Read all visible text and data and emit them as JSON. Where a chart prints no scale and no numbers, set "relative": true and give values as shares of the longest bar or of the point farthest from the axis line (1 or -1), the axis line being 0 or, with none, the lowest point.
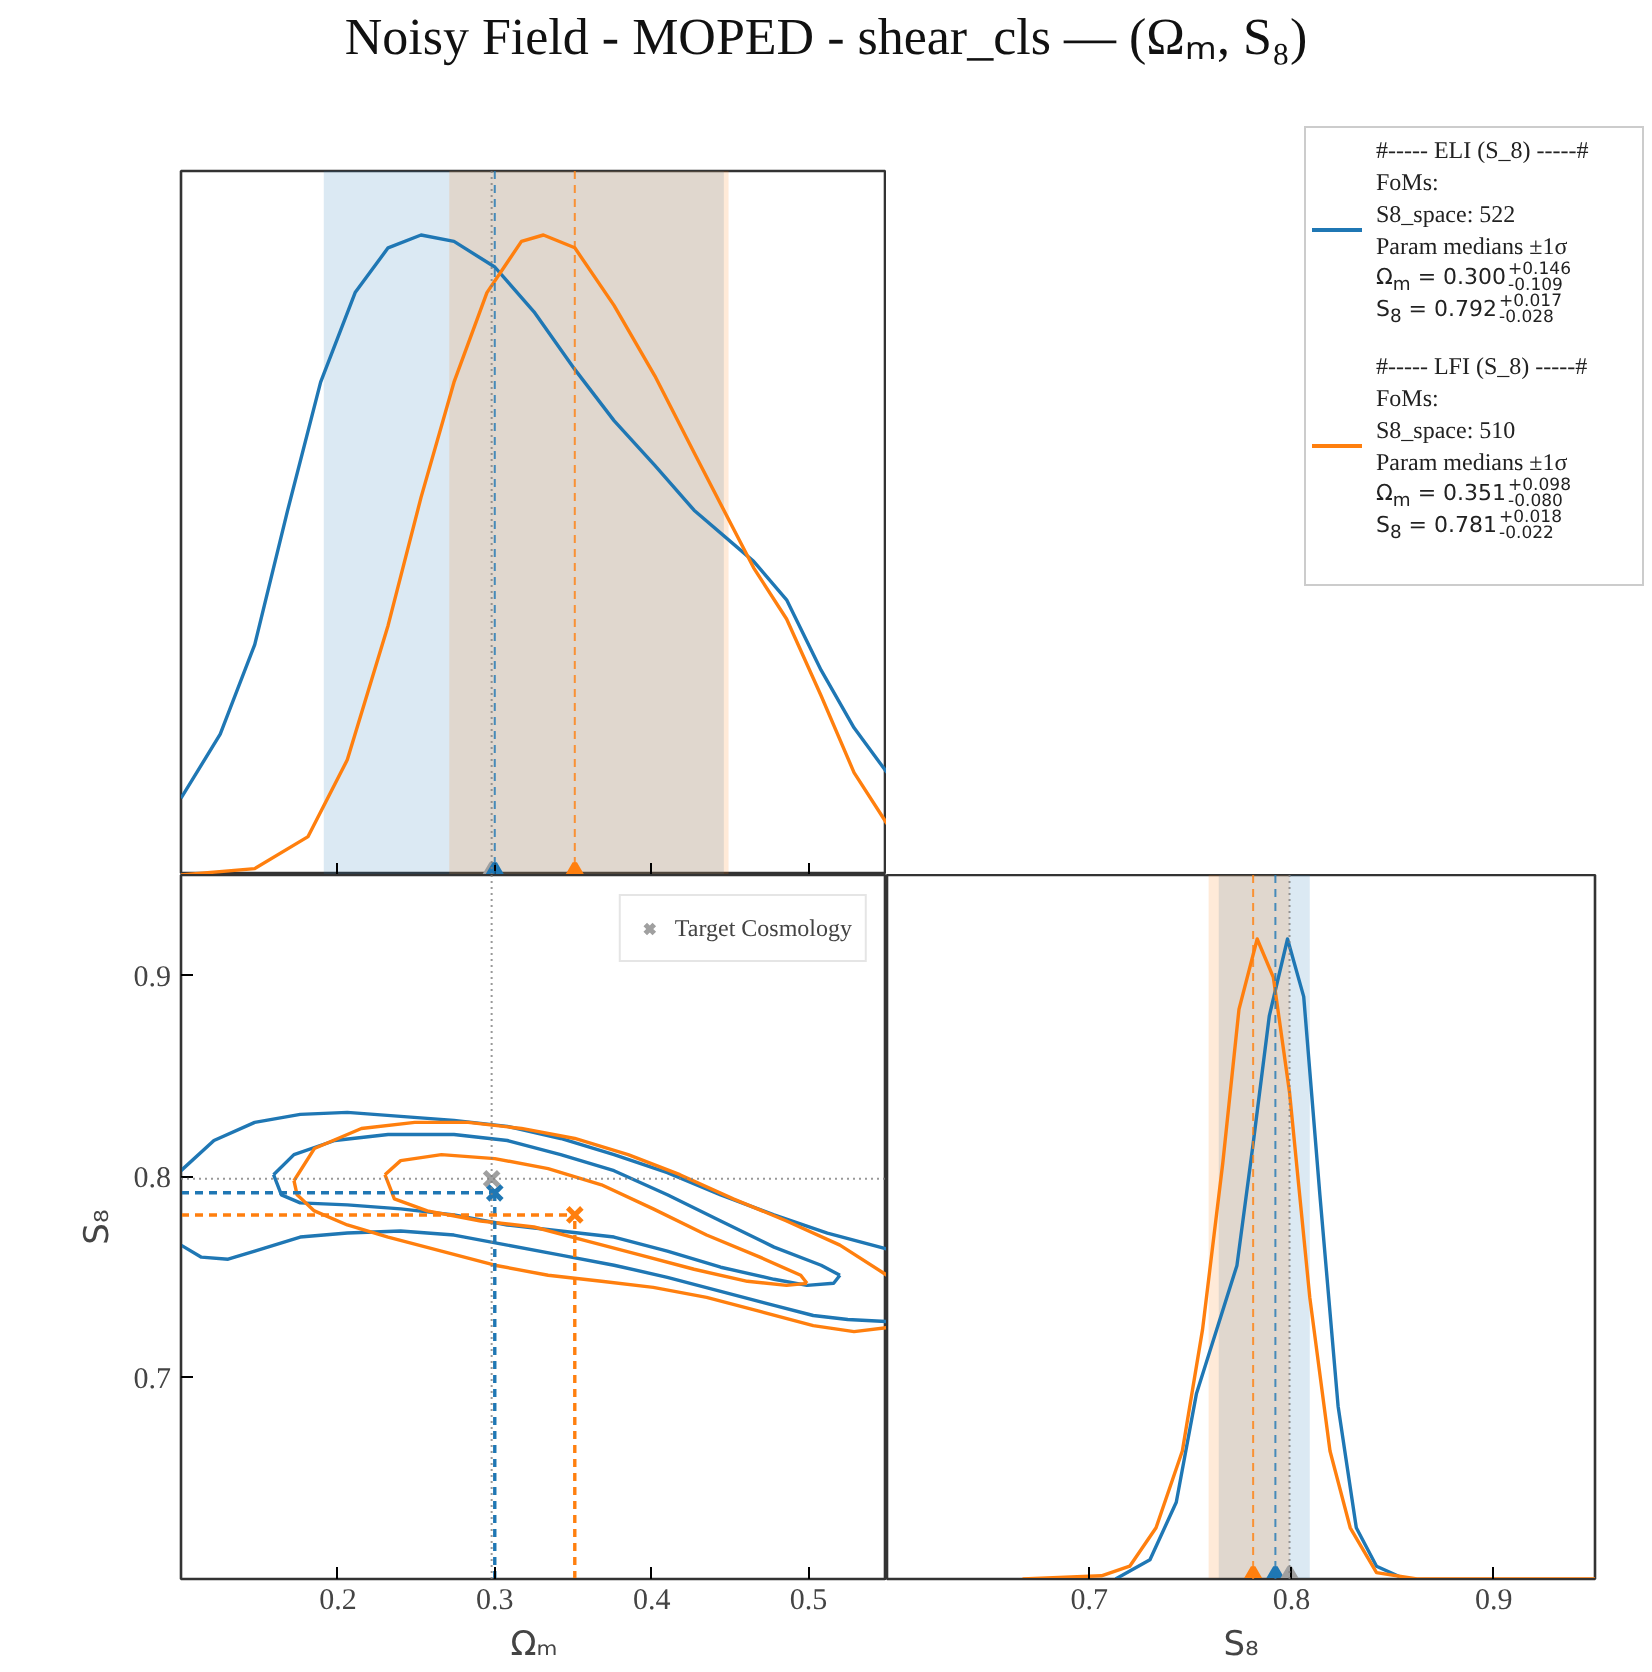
{
  "chart_data": [
    {
      "type": "line",
      "title": "Noisy Field - MOPED - shear_cls — (Ωₘ, S₈)",
      "relative": true,
      "xlim": [
        0.1,
        0.55
      ],
      "xticks": [
        {
          "value": 0.2,
          "label": null
        },
        {
          "value": 0.3,
          "label": null
        },
        {
          "value": 0.4,
          "label": null
        },
        {
          "value": 0.5,
          "label": null
        }
      ],
      "tick_labels": false,
      "legend": "right",
      "bands": [
        {
          "axis": "x",
          "from": 0.191,
          "to": 0.446,
          "color": "#1f77b4"
        },
        {
          "axis": "x",
          "from": 0.271,
          "to": 0.449,
          "color": "#ff7f0e"
        }
      ],
      "ref_lines": [
        {
          "axis": "x",
          "value": 0.3,
          "color": "#1f77b4",
          "line_style": "dashed"
        },
        {
          "axis": "x",
          "value": 0.351,
          "color": "#ff7f0e",
          "line_style": "dashed"
        },
        {
          "axis": "x",
          "value": 0.298,
          "color": "#808080",
          "line_style": "dotted"
        }
      ],
      "series": [
        {
          "name": "#----- ELI (S_8) -----#\nFoMs:\nS8_space: 522\nParam medians ±1σ\nΩ$_{m}$ = 0.300$^{+0.146}$$_{-0.109}$\nS$_{8}$ = 0.792$^{+0.017}$$_{-0.028}$",
          "color": "#1f77b4",
          "x": [
            0.1,
            0.125,
            0.147,
            0.168,
            0.189,
            0.211,
            0.232,
            0.253,
            0.274,
            0.3,
            0.325,
            0.351,
            0.376,
            0.402,
            0.427,
            0.465,
            0.486,
            0.508,
            0.529,
            0.55
          ],
          "values": [
            0.12,
            0.22,
            0.36,
            0.57,
            0.77,
            0.91,
            0.98,
            1.0,
            0.99,
            0.95,
            0.88,
            0.79,
            0.71,
            0.64,
            0.57,
            0.49,
            0.43,
            0.32,
            0.23,
            0.16
          ]
        },
        {
          "name": "#----- LFI (S_8) -----#\nFoMs:\nS8_space: 510\nParam medians ±1σ\nΩ$_{m}$ = 0.351$^{+0.098}$$_{-0.080}$\nS$_{8}$ = 0.781$^{+0.018}$$_{-0.022}$",
          "color": "#ff7f0e",
          "x": [
            0.1,
            0.147,
            0.181,
            0.206,
            0.232,
            0.253,
            0.274,
            0.295,
            0.317,
            0.331,
            0.351,
            0.376,
            0.402,
            0.427,
            0.465,
            0.486,
            0.508,
            0.529,
            0.55
          ],
          "values": [
            0,
            0.01,
            0.06,
            0.18,
            0.39,
            0.59,
            0.77,
            0.91,
            0.99,
            1.0,
            0.98,
            0.89,
            0.78,
            0.66,
            0.48,
            0.4,
            0.28,
            0.16,
            0.08
          ]
        },
        {
          "type": "scatter",
          "marker": "triangle",
          "x": [
            0.298,
            0.3,
            0.351
          ],
          "colors": [
            "#a0a0a0",
            "#1f77b4",
            "#ff7f0e"
          ],
          "values": [
            0,
            0,
            0
          ]
        }
      ]
    },
    {
      "type": "line",
      "xlabel": "Ωₘ",
      "ylabel": "S₈",
      "xlim": [
        0.1,
        0.55
      ],
      "ylim": [
        0.6,
        0.95
      ],
      "xticks": [
        0.2,
        0.3,
        0.4,
        0.5
      ],
      "yticks": [
        0.7,
        0.8,
        0.9
      ],
      "legend": "top right",
      "ref_lines": [
        {
          "axis": "x",
          "value": 0.298,
          "color": "#808080",
          "line_style": "dotted"
        },
        {
          "axis": "y",
          "value": 0.799,
          "color": "#808080",
          "line_style": "dotted"
        }
      ],
      "series": [
        {
          "color": "#1f77b4",
          "x": [
            0.1,
            0.121,
            0.147,
            0.176,
            0.206,
            0.24,
            0.274,
            0.308,
            0.342,
            0.376,
            0.41,
            0.444,
            0.478,
            0.512,
            0.55
          ],
          "values": [
            0.803,
            0.818,
            0.827,
            0.831,
            0.832,
            0.83,
            0.828,
            0.825,
            0.819,
            0.811,
            0.802,
            0.791,
            0.781,
            0.772,
            0.764
          ]
        },
        {
          "color": "#1f77b4",
          "x": [
            0.1,
            0.113,
            0.13,
            0.147,
            0.176,
            0.206,
            0.24,
            0.274,
            0.308,
            0.342,
            0.376,
            0.41,
            0.444,
            0.478,
            0.503,
            0.525,
            0.55
          ],
          "values": [
            0.766,
            0.76,
            0.759,
            0.763,
            0.77,
            0.772,
            0.773,
            0.771,
            0.766,
            0.761,
            0.756,
            0.75,
            0.743,
            0.736,
            0.731,
            0.729,
            0.728
          ]
        },
        {
          "color": "#1f77b4",
          "x": [
            0.159,
            0.172,
            0.198,
            0.232,
            0.274,
            0.308,
            0.342,
            0.376,
            0.41,
            0.444,
            0.478,
            0.508,
            0.52
          ],
          "values": [
            0.801,
            0.811,
            0.818,
            0.821,
            0.821,
            0.818,
            0.811,
            0.803,
            0.791,
            0.778,
            0.765,
            0.756,
            0.751
          ]
        },
        {
          "color": "#1f77b4",
          "x": [
            0.159,
            0.164,
            0.176,
            0.206,
            0.24,
            0.274,
            0.308,
            0.342,
            0.376,
            0.41,
            0.444,
            0.478,
            0.499,
            0.516,
            0.52
          ],
          "values": [
            0.801,
            0.791,
            0.787,
            0.786,
            0.784,
            0.781,
            0.776,
            0.773,
            0.77,
            0.763,
            0.755,
            0.749,
            0.746,
            0.747,
            0.751
          ]
        },
        {
          "color": "#ff7f0e",
          "x": [
            0.172,
            0.185,
            0.215,
            0.249,
            0.283,
            0.317,
            0.351,
            0.385,
            0.418,
            0.452,
            0.486,
            0.52,
            0.55
          ],
          "values": [
            0.798,
            0.814,
            0.824,
            0.827,
            0.827,
            0.824,
            0.819,
            0.811,
            0.801,
            0.789,
            0.778,
            0.766,
            0.751
          ]
        },
        {
          "color": "#ff7f0e",
          "x": [
            0.172,
            0.174,
            0.185,
            0.206,
            0.232,
            0.266,
            0.3,
            0.334,
            0.368,
            0.401,
            0.435,
            0.469,
            0.503,
            0.529,
            0.55
          ],
          "values": [
            0.798,
            0.791,
            0.783,
            0.776,
            0.77,
            0.763,
            0.756,
            0.751,
            0.748,
            0.745,
            0.74,
            0.733,
            0.726,
            0.723,
            0.725
          ]
        },
        {
          "color": "#ff7f0e",
          "x": [
            0.23,
            0.24,
            0.266,
            0.3,
            0.334,
            0.368,
            0.401,
            0.435,
            0.469,
            0.495,
            0.499
          ],
          "values": [
            0.801,
            0.808,
            0.811,
            0.809,
            0.804,
            0.796,
            0.784,
            0.771,
            0.76,
            0.751,
            0.747
          ]
        },
        {
          "color": "#ff7f0e",
          "x": [
            0.23,
            0.236,
            0.257,
            0.291,
            0.325,
            0.359,
            0.393,
            0.427,
            0.461,
            0.486,
            0.499
          ],
          "values": [
            0.801,
            0.789,
            0.783,
            0.778,
            0.775,
            0.768,
            0.761,
            0.754,
            0.748,
            0.746,
            0.747
          ]
        },
        {
          "color": "#1f77b4",
          "line_style": "dashed",
          "x": [
            0.1,
            0.3
          ],
          "values": [
            0.792,
            0.792
          ]
        },
        {
          "color": "#1f77b4",
          "line_style": "dashed",
          "x": [
            0.3,
            0.3
          ],
          "values": [
            0.6,
            0.792
          ]
        },
        {
          "color": "#ff7f0e",
          "line_style": "dashed",
          "x": [
            0.1,
            0.351
          ],
          "values": [
            0.781,
            0.781
          ]
        },
        {
          "color": "#ff7f0e",
          "line_style": "dashed",
          "x": [
            0.351,
            0.351
          ],
          "values": [
            0.6,
            0.781
          ]
        },
        {
          "type": "scatter",
          "marker": "cross",
          "x": [
            0.3,
            0.351
          ],
          "colors": [
            "#1f77b4",
            "#ff7f0e"
          ],
          "values": [
            0.792,
            0.781
          ]
        },
        {
          "type": "scatter",
          "marker": "cross",
          "name": "Target Cosmology",
          "color": "#a0a0a0",
          "x": [
            0.298
          ],
          "values": [
            0.799
          ]
        }
      ]
    },
    {
      "type": "line",
      "xlabel": "S₈",
      "relative": true,
      "xlim": [
        0.6,
        0.95
      ],
      "xticks": [
        0.7,
        0.8,
        0.9
      ],
      "tick_labels": "x",
      "bands": [
        {
          "axis": "x",
          "from": 0.764,
          "to": 0.809,
          "color": "#1f77b4"
        },
        {
          "axis": "x",
          "from": 0.759,
          "to": 0.799,
          "color": "#ff7f0e"
        }
      ],
      "ref_lines": [
        {
          "axis": "x",
          "value": 0.792,
          "color": "#1f77b4",
          "line_style": "dashed"
        },
        {
          "axis": "x",
          "value": 0.781,
          "color": "#ff7f0e",
          "line_style": "dashed"
        },
        {
          "axis": "x",
          "value": 0.799,
          "color": "#808080",
          "line_style": "dotted"
        }
      ],
      "series": [
        {
          "color": "#1f77b4",
          "x": [
            0.713,
            0.73,
            0.743,
            0.753,
            0.763,
            0.773,
            0.781,
            0.789,
            0.798,
            0.806,
            0.814,
            0.823,
            0.832,
            0.842,
            0.856
          ],
          "values": [
            0,
            0.03,
            0.12,
            0.29,
            0.39,
            0.49,
            0.68,
            0.88,
            1.0,
            0.91,
            0.6,
            0.27,
            0.08,
            0.02,
            0
          ]
        },
        {
          "color": "#ff7f0e",
          "x": [
            0.667,
            0.706,
            0.72,
            0.733,
            0.746,
            0.756,
            0.766,
            0.774,
            0.783,
            0.791,
            0.799,
            0.809,
            0.819,
            0.829,
            0.842,
            0.862,
            0.95
          ],
          "values": [
            0,
            0.005,
            0.02,
            0.08,
            0.2,
            0.39,
            0.65,
            0.89,
            1.0,
            0.94,
            0.76,
            0.44,
            0.2,
            0.08,
            0.01,
            0,
            0
          ]
        },
        {
          "type": "scatter",
          "marker": "triangle",
          "x": [
            0.781,
            0.792,
            0.799
          ],
          "colors": [
            "#ff7f0e",
            "#1f77b4",
            "#a0a0a0"
          ],
          "values": [
            0,
            0,
            0
          ]
        }
      ]
    }
  ]
}
